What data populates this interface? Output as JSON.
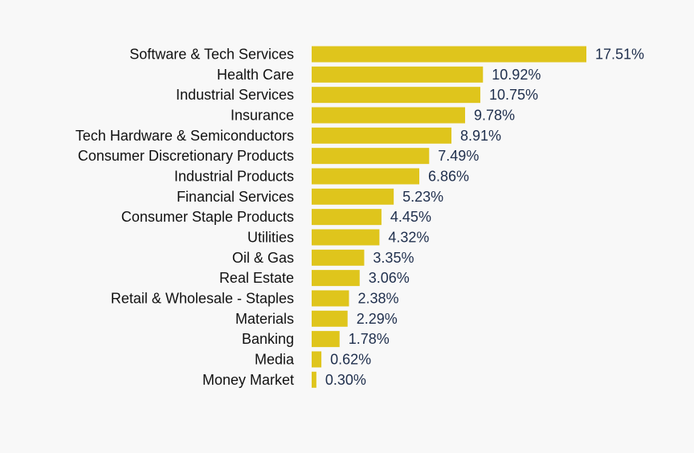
{
  "chart_data": {
    "type": "bar",
    "orientation": "horizontal",
    "title": "",
    "xlabel": "",
    "ylabel": "",
    "xlim": [
      0,
      17.51
    ],
    "grid": false,
    "bar_color": "#dfc51c",
    "value_label_color": "#1f2f4d",
    "categories": [
      "Software & Tech Services",
      "Health Care",
      "Industrial Services",
      "Insurance",
      "Tech Hardware & Semiconductors",
      "Consumer Discretionary Products",
      "Industrial Products",
      "Financial Services",
      "Consumer Staple Products",
      "Utilities",
      "Oil & Gas",
      "Real Estate",
      "Retail & Wholesale - Staples",
      "Materials",
      "Banking",
      "Media",
      "Money Market"
    ],
    "values": [
      17.51,
      10.92,
      10.75,
      9.78,
      8.91,
      7.49,
      6.86,
      5.23,
      4.45,
      4.32,
      3.35,
      3.06,
      2.38,
      2.29,
      1.78,
      0.62,
      0.3
    ],
    "value_labels": [
      "17.51%",
      "10.92%",
      "10.75%",
      "9.78%",
      "8.91%",
      "7.49%",
      "6.86%",
      "5.23%",
      "4.45%",
      "4.32%",
      "3.35%",
      "3.06%",
      "2.38%",
      "2.29%",
      "1.78%",
      "0.62%",
      "0.30%"
    ]
  }
}
